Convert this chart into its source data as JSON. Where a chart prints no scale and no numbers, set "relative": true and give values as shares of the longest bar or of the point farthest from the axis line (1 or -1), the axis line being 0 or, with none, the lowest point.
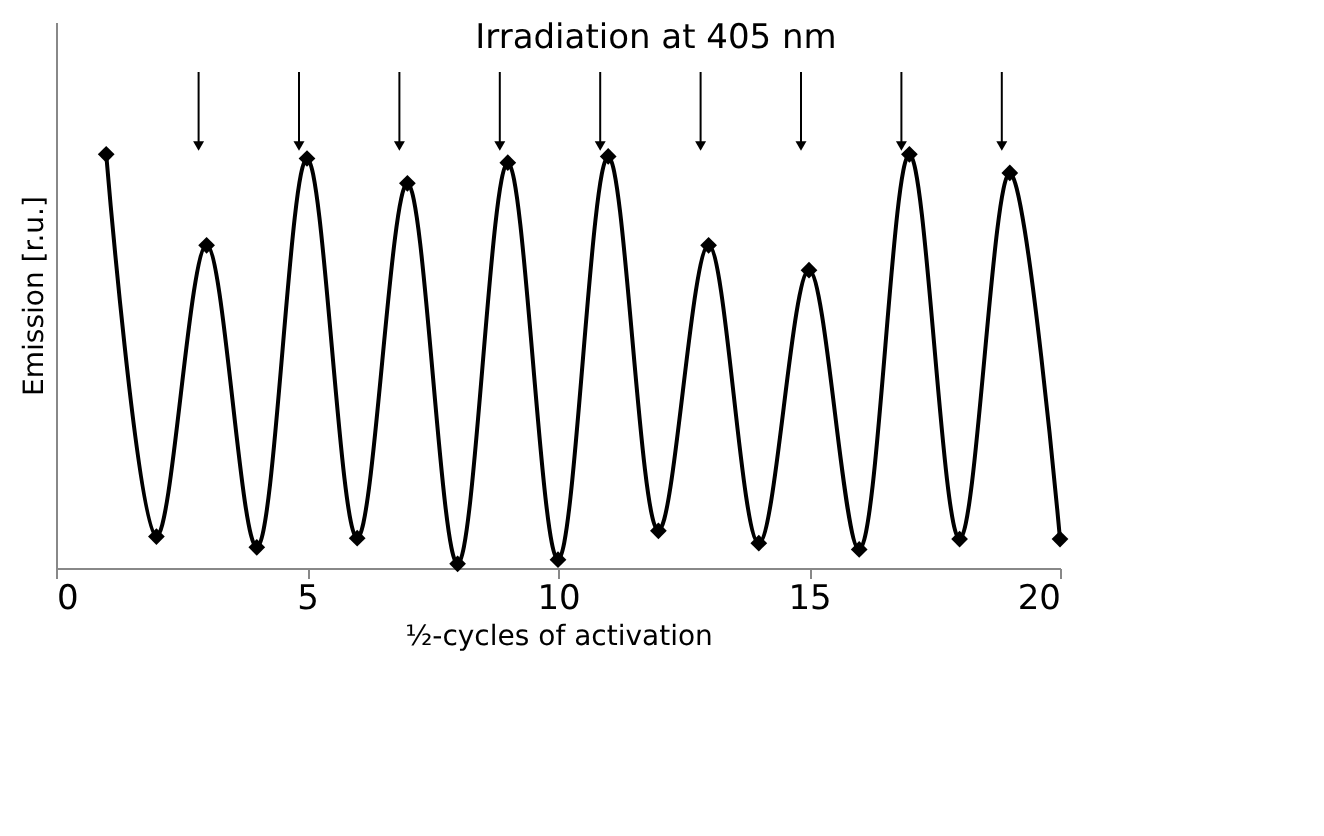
{
  "chart_data": {
    "type": "line",
    "relative": true,
    "xlabel": "½-cycles of activation",
    "ylabel": "Emission [r.u.]",
    "x": [
      1,
      2,
      3,
      4,
      5,
      6,
      7,
      8,
      9,
      10,
      11,
      12,
      13,
      14,
      15,
      16,
      17,
      18,
      19,
      20
    ],
    "series": [
      {
        "color": "#000000",
        "values": [
          1.0,
          0.076,
          0.78,
          0.05,
          0.99,
          0.072,
          0.93,
          0.01,
          0.98,
          0.02,
          0.995,
          0.09,
          0.78,
          0.06,
          0.72,
          0.045,
          1.0,
          0.07,
          0.955,
          0.07
        ]
      }
    ],
    "xlim": [
      0,
      20
    ],
    "xticks": [
      0,
      5,
      10,
      15,
      20
    ],
    "grid": false,
    "marker": "diamond",
    "line_style": "solid",
    "annotations": [
      "Irradiation at 405 nm"
    ]
  }
}
